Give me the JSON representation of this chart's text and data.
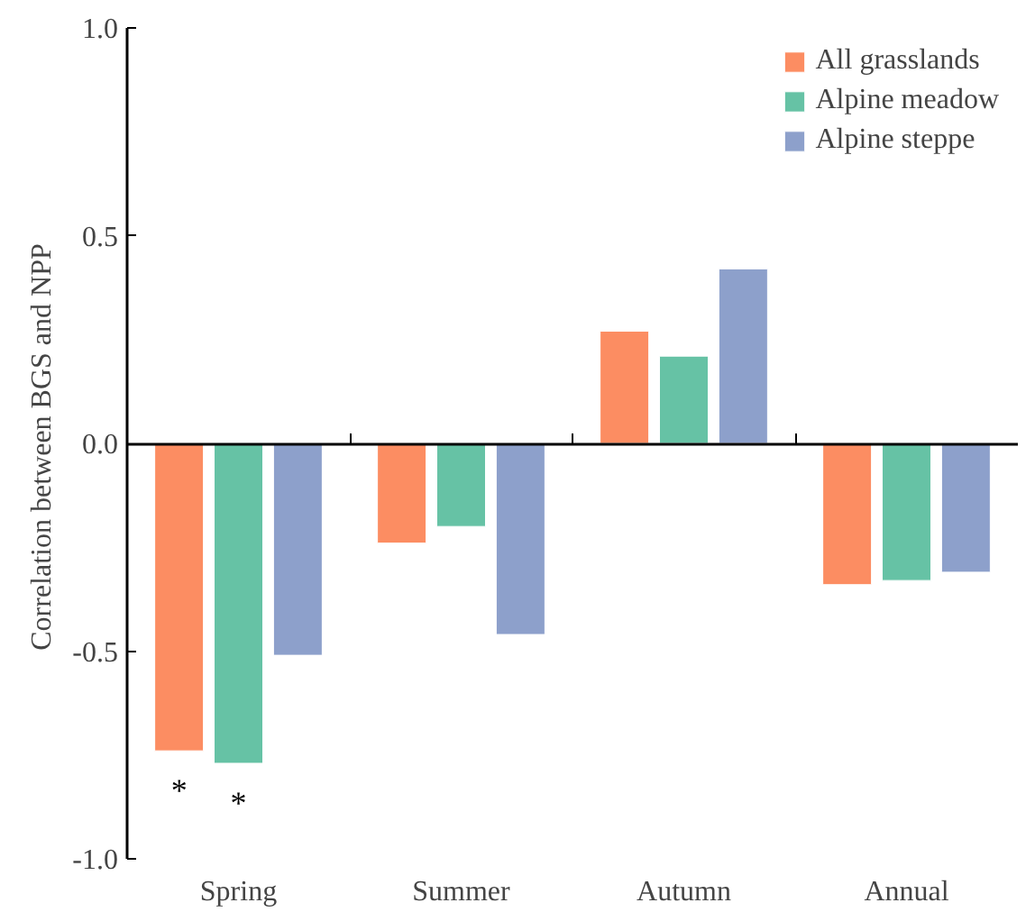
{
  "chart_data": {
    "type": "bar",
    "ylabel": "Correlation  between BGS and NPP",
    "categories": [
      "Spring",
      "Summer",
      "Autumn",
      "Annual"
    ],
    "series": [
      {
        "name": "All grasslands",
        "color": "#fc8d62",
        "values": [
          -0.74,
          -0.24,
          0.27,
          -0.34
        ]
      },
      {
        "name": "Alpine meadow",
        "color": "#66c2a5",
        "values": [
          -0.77,
          -0.2,
          0.21,
          -0.33
        ]
      },
      {
        "name": "Alpine steppe",
        "color": "#8da0cb",
        "values": [
          -0.51,
          -0.46,
          0.42,
          -0.31
        ]
      }
    ],
    "ylim": [
      -1.0,
      1.0
    ],
    "yticks": [
      {
        "value": -1.0,
        "label": "-1.0"
      },
      {
        "value": -0.5,
        "label": "-0.5"
      },
      {
        "value": 0.0,
        "label": "0.0"
      },
      {
        "value": 0.5,
        "label": "0.5"
      },
      {
        "value": 1.0,
        "label": "1.0"
      }
    ],
    "annotations": [
      "*",
      "*"
    ],
    "legend": "top right"
  }
}
